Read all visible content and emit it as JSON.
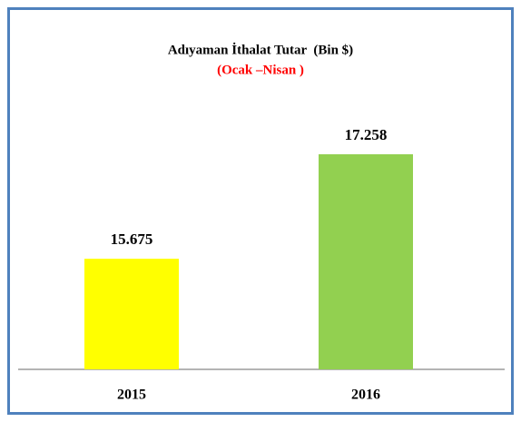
{
  "chart_data": {
    "type": "bar",
    "title": "Adıyaman İthalat Tutar  (Bin $)",
    "subtitle": "(Ocak –Nisan )",
    "categories": [
      "2015",
      "2016"
    ],
    "values": [
      15675,
      17258
    ],
    "value_labels": [
      "15.675",
      "17.258"
    ],
    "colors": [
      "#ffff00",
      "#92d050"
    ],
    "ylim": [
      14000,
      18000
    ]
  }
}
